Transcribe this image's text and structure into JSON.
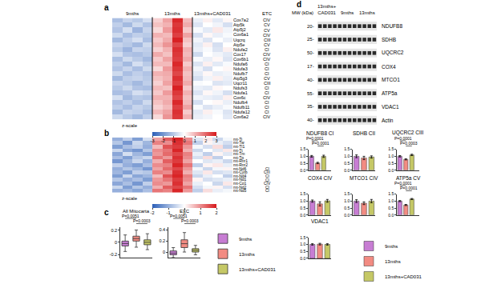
{
  "chart_data": [
    {
      "type": "heatmap",
      "title": "a",
      "x_groups": [
        "9mths",
        "9mths",
        "9mths",
        "9mths",
        "13mths",
        "13mths",
        "13mths",
        "13mths",
        "13mths+CAD031",
        "13mths+CAD031",
        "13mths+CAD031",
        "13mths+CAD031"
      ],
      "rows": [
        "Cox7a2",
        "Atp5k",
        "Atp5j2",
        "Cox6a1",
        "Uqcrq",
        "Atp5e",
        "Ndufa2",
        "Cox17",
        "Cox6b1",
        "Ndufa6",
        "Ndufa3",
        "Ndufb7",
        "Atp5g3",
        "Uqcr11",
        "Ndufs3",
        "Ndufa1",
        "Cox6c",
        "Ndufb4",
        "Ndufb11",
        "Ndufa12",
        "Cox6a2"
      ],
      "row_groups": [
        "CIV",
        "CV",
        "CV",
        "CIV",
        "CIII",
        "CV",
        "CI",
        "CIV",
        "CIV",
        "CI",
        "CI",
        "CI",
        "CV",
        "CIII",
        "CI",
        "CI",
        "CIV",
        "CI",
        "CI",
        "CI",
        "CIV"
      ],
      "row_group_title": "ETC",
      "values": [
        [
          -1.2,
          -0.8,
          -1.0,
          -0.6,
          0.6,
          1.2,
          2.8,
          0.9,
          -0.3,
          0.2,
          -0.4,
          0.1
        ],
        [
          -0.9,
          -1.3,
          -0.7,
          -1.1,
          0.8,
          1.0,
          2.6,
          1.1,
          -0.5,
          0.0,
          -0.2,
          -0.6
        ],
        [
          -1.1,
          -0.6,
          -1.4,
          -0.8,
          0.5,
          1.3,
          2.7,
          0.7,
          -0.1,
          -0.4,
          0.3,
          -0.2
        ],
        [
          -0.7,
          -1.2,
          -0.9,
          -1.0,
          1.0,
          0.9,
          2.5,
          1.2,
          -0.6,
          0.1,
          -0.3,
          -0.1
        ],
        [
          -1.3,
          -0.9,
          -0.6,
          -1.2,
          0.7,
          1.1,
          2.9,
          0.8,
          -0.2,
          -0.5,
          0.0,
          -0.3
        ],
        [
          -0.8,
          -1.0,
          -1.3,
          -0.7,
          0.9,
          1.4,
          2.4,
          0.6,
          -0.4,
          0.2,
          -0.6,
          0.0
        ],
        [
          -1.0,
          -1.4,
          -0.8,
          -0.9,
          0.6,
          1.0,
          2.7,
          1.0,
          -0.3,
          -0.1,
          -0.5,
          0.2
        ],
        [
          -0.6,
          -1.1,
          -1.2,
          -1.0,
          1.1,
          0.8,
          2.6,
          0.9,
          -0.7,
          0.0,
          -0.2,
          -0.4
        ],
        [
          -1.2,
          -0.7,
          -1.0,
          -1.3,
          0.7,
          1.2,
          2.5,
          1.1,
          -0.1,
          -0.3,
          0.1,
          -0.5
        ],
        [
          -0.9,
          -1.3,
          -0.6,
          -1.0,
          0.9,
          0.9,
          2.8,
          0.7,
          -0.5,
          0.2,
          -0.4,
          -0.1
        ],
        [
          -1.1,
          -0.8,
          -1.2,
          -0.7,
          0.5,
          1.3,
          2.6,
          1.0,
          -0.2,
          -0.6,
          0.0,
          0.1
        ],
        [
          -0.7,
          -1.2,
          -0.9,
          -1.1,
          1.0,
          1.1,
          2.4,
          0.8,
          -0.4,
          0.1,
          -0.3,
          -0.2
        ],
        [
          -1.3,
          -0.9,
          -0.8,
          -1.0,
          0.8,
          1.0,
          2.7,
          0.9,
          -0.6,
          -0.2,
          0.2,
          -0.3
        ],
        [
          -0.8,
          -1.0,
          -1.3,
          -0.9,
          0.6,
          1.2,
          2.5,
          1.1,
          -0.1,
          0.0,
          -0.5,
          -0.4
        ],
        [
          -1.0,
          -0.7,
          -1.1,
          -1.2,
          0.9,
          0.8,
          2.9,
          0.7,
          -0.3,
          -0.4,
          0.1,
          0.0
        ],
        [
          -1.2,
          -1.1,
          -0.6,
          -0.8,
          0.7,
          1.3,
          2.6,
          1.0,
          -0.5,
          0.1,
          -0.2,
          -0.6
        ],
        [
          -0.6,
          -1.3,
          -1.0,
          -1.1,
          1.0,
          1.0,
          2.4,
          0.8,
          -0.2,
          -0.3,
          -0.4,
          0.2
        ],
        [
          -1.1,
          -0.9,
          -1.2,
          -0.7,
          0.8,
          1.1,
          2.8,
          0.9,
          -0.6,
          0.0,
          0.1,
          -0.3
        ],
        [
          -0.9,
          -1.2,
          -0.8,
          -1.0,
          0.6,
          0.9,
          2.5,
          1.2,
          -0.1,
          -0.5,
          -0.3,
          -0.1
        ],
        [
          -1.3,
          -0.8,
          -0.9,
          -1.2,
          0.9,
          1.2,
          2.7,
          0.7,
          -0.4,
          0.2,
          -0.1,
          -0.5
        ],
        [
          -0.7,
          -1.0,
          -1.3,
          -0.9,
          0.5,
          1.4,
          2.6,
          1.0,
          -0.3,
          -0.2,
          0.0,
          -0.4
        ]
      ],
      "zlim": [
        -3,
        3
      ],
      "zticks": [
        -3,
        -2,
        -1,
        0,
        1,
        2,
        3
      ],
      "colorbar_title": "z-scale",
      "tick_labels": "y"
    },
    {
      "type": "heatmap",
      "title": "b",
      "rows": [
        "mt-Ti",
        "mt-Tw",
        "mt-Tl1",
        "mt-Tt",
        "mt-Tm",
        "mt-Tp",
        "mt-Rnr1",
        "mt-Rnr2",
        "mt-Nd6",
        "mt-Cytb",
        "mt-Nd4",
        "mt-Nd1",
        "mt-Co1",
        "mt-Nd2",
        "mt-Nd5"
      ],
      "row_groups": [
        null,
        null,
        null,
        null,
        null,
        null,
        null,
        null,
        "CI",
        "CIII",
        "CI",
        "CI",
        "CIV",
        "CI",
        "CI"
      ],
      "values": [
        [
          -1.0,
          -0.6,
          -1.2,
          -0.4,
          0.8,
          1.4,
          1.9,
          1.0,
          -0.3,
          0.2,
          -0.5,
          -0.1
        ],
        [
          -0.7,
          -1.3,
          -0.5,
          -0.9,
          1.1,
          1.0,
          1.8,
          1.2,
          -0.6,
          0.1,
          -0.2,
          -0.4
        ],
        [
          -1.2,
          -0.8,
          -0.6,
          -1.0,
          0.6,
          1.5,
          1.7,
          0.9,
          -0.1,
          -0.4,
          0.3,
          -0.6
        ],
        [
          -0.5,
          -1.1,
          -1.3,
          -0.7,
          1.0,
          1.2,
          1.9,
          0.7,
          -0.5,
          0.0,
          -0.3,
          0.2
        ],
        [
          -1.1,
          -0.4,
          -0.9,
          -1.2,
          0.9,
          1.3,
          1.6,
          1.1,
          -0.2,
          -0.6,
          0.1,
          -0.3
        ],
        [
          -0.8,
          -1.2,
          -0.7,
          -0.5,
          1.2,
          0.9,
          1.8,
          1.0,
          -0.4,
          0.3,
          -0.6,
          0.0
        ],
        [
          -1.3,
          -0.9,
          -0.5,
          -1.0,
          0.7,
          1.4,
          1.7,
          0.8,
          0.0,
          -0.3,
          -0.2,
          -0.5
        ],
        [
          -0.6,
          -1.0,
          -1.2,
          -0.8,
          1.0,
          1.1,
          1.9,
          1.2,
          -0.6,
          0.1,
          0.2,
          -0.2
        ],
        [
          -1.0,
          -0.7,
          -0.9,
          -1.3,
          0.8,
          1.3,
          1.6,
          0.9,
          -0.1,
          -0.5,
          -0.1,
          0.1
        ],
        [
          -0.9,
          -1.2,
          -0.6,
          -0.7,
          1.1,
          1.0,
          1.8,
          0.7,
          -0.3,
          0.2,
          -0.4,
          -0.3
        ],
        [
          -1.2,
          -0.5,
          -1.1,
          -0.9,
          0.6,
          1.5,
          1.9,
          1.1,
          -0.5,
          -0.2,
          0.0,
          -0.6
        ],
        [
          -0.7,
          -1.0,
          -0.8,
          -1.2,
          0.9,
          1.2,
          1.7,
          1.0,
          0.1,
          -0.4,
          -0.3,
          -0.2
        ],
        [
          -1.1,
          -0.8,
          -1.3,
          -0.6,
          1.0,
          0.9,
          1.8,
          0.8,
          -0.2,
          0.0,
          -0.5,
          0.2
        ],
        [
          -0.5,
          -1.2,
          -0.7,
          -1.0,
          0.7,
          1.4,
          1.6,
          1.2,
          -0.4,
          -0.1,
          0.1,
          -0.4
        ],
        [
          -1.0,
          -0.9,
          -1.1,
          -0.8,
          1.2,
          1.1,
          1.9,
          0.9,
          -0.6,
          0.3,
          -0.2,
          -0.1
        ]
      ],
      "zlim": [
        -2,
        2
      ],
      "zticks": [
        -2,
        -1,
        0,
        1,
        2
      ],
      "colorbar_title": "z-scale",
      "tick_labels": "y"
    },
    {
      "type": "box",
      "title": "c",
      "category": "All Mitocarta",
      "series": [
        {
          "name": "9mths",
          "color": "#c77dd3",
          "q1": -0.06,
          "median": -0.02,
          "q3": 0.02,
          "lowerfence": -0.15,
          "upperfence": 0.12
        },
        {
          "name": "13mths",
          "color": "#f28b82",
          "q1": 0.02,
          "median": 0.06,
          "q3": 0.1,
          "lowerfence": -0.08,
          "upperfence": 0.2
        },
        {
          "name": "13mths+CAD031",
          "color": "#c5c866",
          "q1": -0.04,
          "median": 0.0,
          "q3": 0.04,
          "lowerfence": -0.12,
          "upperfence": 0.14
        }
      ],
      "comparisons": [
        {
          "between": [
            "9mths",
            "13mths"
          ],
          "label": "P=0.0051"
        },
        {
          "between": [
            "13mths",
            "13mths+CAD031"
          ],
          "label": "P=0.0003"
        }
      ],
      "ylim": [
        -0.25,
        0.25
      ],
      "yticks": [
        -0.2,
        0,
        0.2
      ],
      "tick_labels": "y",
      "legend": "right"
    },
    {
      "type": "box",
      "category": "ETC",
      "series": [
        {
          "name": "9mths",
          "color": "#c77dd3",
          "q1": -0.05,
          "median": -0.02,
          "q3": 0.02,
          "lowerfence": -0.1,
          "upperfence": 0.08
        },
        {
          "name": "13mths",
          "color": "#f28b82",
          "q1": 0.08,
          "median": 0.15,
          "q3": 0.22,
          "lowerfence": 0.0,
          "upperfence": 0.35
        },
        {
          "name": "13mths+CAD031",
          "color": "#c5c866",
          "q1": 0.0,
          "median": 0.03,
          "q3": 0.06,
          "lowerfence": -0.05,
          "upperfence": 0.12
        }
      ],
      "comparisons": [
        {
          "between": [
            "9mths",
            "13mths"
          ],
          "label": "P=0.0051"
        },
        {
          "between": [
            "13mths",
            "13mths+CAD031"
          ],
          "label": "P=0.0003"
        }
      ],
      "ylim": [
        -0.1,
        0.45
      ],
      "yticks": [
        0,
        0.2,
        0.4
      ],
      "tick_labels": "y"
    },
    {
      "type": "blot",
      "title": "d",
      "mw_title": "MW (kDa)",
      "lanes": [
        "13mths+\nCAD031",
        "13mths+\nCAD031",
        "13mths+\nCAD031",
        "13mths+\nCAD031",
        "9mths",
        "9mths",
        "9mths",
        "9mths",
        "13mths",
        "13mths",
        "13mths",
        "13mths"
      ],
      "bands": [
        {
          "label": "NDUFB8",
          "mw": "20-"
        },
        {
          "label": "SDHB",
          "mw": "25-"
        },
        {
          "label": "UQCRC2",
          "mw": "50-"
        },
        {
          "label": "COX4",
          "mw": "17-"
        },
        {
          "label": "MTCO1",
          "mw": "40-"
        },
        {
          "label": "ATP5a",
          "mw": "55-"
        },
        {
          "label": "VDAC1",
          "mw": "35-"
        },
        {
          "label": "Actin",
          "mw": "40-"
        }
      ]
    },
    {
      "type": "bar",
      "title": "NDUFB8 CI",
      "categories": [
        "9mths",
        "13mths",
        "13mths+CAD031"
      ],
      "values": [
        1.0,
        0.52,
        1.0
      ],
      "errors": [
        0.06,
        0.05,
        0.08
      ],
      "colors": [
        "#c77dd3",
        "#f28b82",
        "#c5c866"
      ],
      "comparisons": [
        {
          "between": [
            "9mths",
            "13mths"
          ],
          "label": "P=0.0001"
        },
        {
          "between": [
            "13mths",
            "13mths+CAD031"
          ],
          "label": "P=0.0001"
        }
      ],
      "ylim": [
        0,
        1.5
      ],
      "yticks": [
        {
          "value": 0,
          "label": "0.0"
        },
        {
          "value": 0.5,
          "label": "0.5"
        },
        {
          "value": 1,
          "label": "1.0"
        },
        {
          "value": 1.5,
          "label": "1.5"
        }
      ],
      "tick_labels": "y"
    },
    {
      "type": "bar",
      "title": "SDHB CII",
      "categories": [
        "9mths",
        "13mths",
        "13mths+CAD031"
      ],
      "values": [
        1.0,
        0.88,
        0.95
      ],
      "errors": [
        0.1,
        0.12,
        0.08
      ],
      "colors": [
        "#c77dd3",
        "#f28b82",
        "#c5c866"
      ],
      "ylim": [
        0,
        1.5
      ],
      "yticks": [
        {
          "value": 0,
          "label": "0.0"
        },
        {
          "value": 0.5,
          "label": "0.5"
        },
        {
          "value": 1,
          "label": "1.0"
        },
        {
          "value": 1.5,
          "label": "1.5"
        }
      ],
      "tick_labels": "y"
    },
    {
      "type": "bar",
      "title": "UQCRC2 CIII",
      "categories": [
        "9mths",
        "13mths",
        "13mths+CAD031"
      ],
      "values": [
        1.0,
        0.78,
        1.1
      ],
      "errors": [
        0.05,
        0.04,
        0.05
      ],
      "colors": [
        "#c77dd3",
        "#f28b82",
        "#c5c866"
      ],
      "comparisons": [
        {
          "between": [
            "9mths",
            "13mths"
          ],
          "label": "P=0.0001"
        },
        {
          "between": [
            "13mths",
            "13mths+CAD031"
          ],
          "label": "P=0.0003"
        }
      ],
      "ylim": [
        0,
        1.5
      ],
      "yticks": [
        {
          "value": 0,
          "label": "0.0"
        },
        {
          "value": 0.5,
          "label": "0.5"
        },
        {
          "value": 1,
          "label": "1.0"
        },
        {
          "value": 1.5,
          "label": "1.5"
        }
      ],
      "tick_labels": "y"
    },
    {
      "type": "bar",
      "title": "COX4 CIV",
      "categories": [
        "9mths",
        "13mths",
        "13mths+CAD031"
      ],
      "values": [
        1.0,
        0.8,
        1.02
      ],
      "errors": [
        0.08,
        0.15,
        0.1
      ],
      "colors": [
        "#c77dd3",
        "#f28b82",
        "#c5c866"
      ],
      "ylim": [
        0,
        1.5
      ],
      "yticks": [
        {
          "value": 0,
          "label": "0.0"
        },
        {
          "value": 0.5,
          "label": "0.5"
        },
        {
          "value": 1,
          "label": "1.0"
        },
        {
          "value": 1.5,
          "label": "1.5"
        }
      ],
      "tick_labels": "y"
    },
    {
      "type": "bar",
      "title": "MTCO1 CIV",
      "categories": [
        "9mths",
        "13mths",
        "13mths+CAD031"
      ],
      "values": [
        1.0,
        0.85,
        1.0
      ],
      "errors": [
        0.1,
        0.1,
        0.12
      ],
      "colors": [
        "#c77dd3",
        "#f28b82",
        "#c5c866"
      ],
      "ylim": [
        0,
        1.5
      ],
      "yticks": [
        {
          "value": 0,
          "label": "0.0"
        },
        {
          "value": 0.5,
          "label": "0.5"
        },
        {
          "value": 1,
          "label": "1.0"
        },
        {
          "value": 1.5,
          "label": "1.5"
        }
      ],
      "tick_labels": "y"
    },
    {
      "type": "bar",
      "title": "ATP5a CV",
      "categories": [
        "9mths",
        "13mths",
        "13mths+CAD031"
      ],
      "values": [
        1.0,
        0.72,
        1.15
      ],
      "errors": [
        0.04,
        0.04,
        0.04
      ],
      "colors": [
        "#c77dd3",
        "#f28b82",
        "#c5c866"
      ],
      "comparisons": [
        {
          "between": [
            "9mths",
            "13mths"
          ],
          "label": "P=0.0001"
        },
        {
          "between": [
            "13mths",
            "13mths+CAD031"
          ],
          "label": "P=0.0001"
        }
      ],
      "ylim": [
        0,
        1.5
      ],
      "yticks": [
        {
          "value": 0,
          "label": "0.0"
        },
        {
          "value": 0.5,
          "label": "0.5"
        },
        {
          "value": 1,
          "label": "1.0"
        },
        {
          "value": 1.5,
          "label": "1.5"
        }
      ],
      "tick_labels": "y"
    },
    {
      "type": "bar",
      "title": "VDAC1",
      "categories": [
        "9mths",
        "13mths",
        "13mths+CAD031"
      ],
      "values": [
        1.0,
        1.02,
        1.0
      ],
      "errors": [
        0.05,
        0.06,
        0.05
      ],
      "colors": [
        "#c77dd3",
        "#f28b82",
        "#c5c866"
      ],
      "ylim": [
        0,
        1.5
      ],
      "yticks": [
        {
          "value": 0,
          "label": "0.0"
        },
        {
          "value": 0.5,
          "label": "0.5"
        },
        {
          "value": 1,
          "label": "1.0"
        },
        {
          "value": 1.5,
          "label": "1.5"
        }
      ],
      "tick_labels": "y",
      "legend": "right"
    }
  ]
}
